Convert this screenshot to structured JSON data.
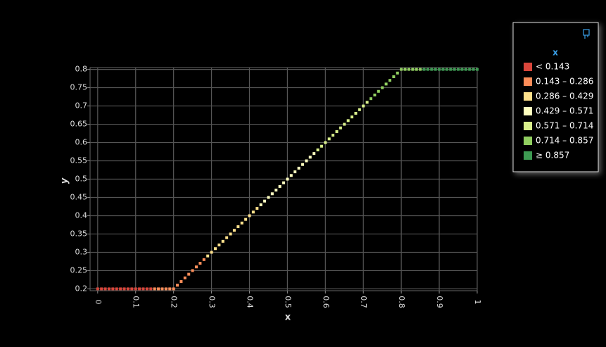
{
  "chart_data": {
    "type": "scatter",
    "x_label": "x",
    "y_label": "y",
    "xlim": [
      -0.02,
      1.0
    ],
    "ylim": [
      0.195,
      0.805
    ],
    "xticks": [
      0,
      0.1,
      0.2,
      0.3,
      0.4,
      0.5,
      0.6,
      0.7,
      0.8,
      0.9,
      1
    ],
    "yticks": [
      0.2,
      0.25,
      0.3,
      0.35,
      0.4,
      0.45,
      0.5,
      0.55,
      0.6,
      0.65,
      0.7,
      0.75,
      0.8
    ],
    "grid": true,
    "x": [
      0,
      0.01,
      0.02,
      0.03,
      0.04,
      0.05,
      0.06,
      0.07,
      0.08,
      0.09,
      0.1,
      0.11,
      0.12,
      0.13,
      0.14,
      0.15,
      0.16,
      0.17,
      0.18,
      0.19,
      0.2,
      0.21,
      0.22,
      0.23,
      0.24,
      0.25,
      0.26,
      0.27,
      0.28,
      0.29,
      0.3,
      0.31,
      0.32,
      0.33,
      0.34,
      0.35,
      0.36,
      0.37,
      0.38,
      0.39,
      0.4,
      0.41,
      0.42,
      0.43,
      0.44,
      0.45,
      0.46,
      0.47,
      0.48,
      0.49,
      0.5,
      0.51,
      0.52,
      0.53,
      0.54,
      0.55,
      0.56,
      0.57,
      0.58,
      0.59,
      0.6,
      0.61,
      0.62,
      0.63,
      0.64,
      0.65,
      0.66,
      0.67,
      0.68,
      0.69,
      0.7,
      0.71,
      0.72,
      0.73,
      0.74,
      0.75,
      0.76,
      0.77,
      0.78,
      0.79,
      0.8,
      0.81,
      0.82,
      0.83,
      0.84,
      0.85,
      0.86,
      0.87,
      0.88,
      0.89,
      0.9,
      0.91,
      0.92,
      0.93,
      0.94,
      0.95,
      0.96,
      0.97,
      0.98,
      0.99,
      1
    ],
    "values": [
      0.2,
      0.2,
      0.2,
      0.2,
      0.2,
      0.2,
      0.2,
      0.2,
      0.2,
      0.2,
      0.2,
      0.2,
      0.2,
      0.2,
      0.2,
      0.2,
      0.2,
      0.2,
      0.2,
      0.2,
      0.2,
      0.21,
      0.22,
      0.23,
      0.24,
      0.25,
      0.26,
      0.27,
      0.28,
      0.29,
      0.3,
      0.31,
      0.32,
      0.33,
      0.34,
      0.35,
      0.36,
      0.37,
      0.38,
      0.39,
      0.4,
      0.41,
      0.42,
      0.43,
      0.44,
      0.45,
      0.46,
      0.47,
      0.48,
      0.49,
      0.5,
      0.51,
      0.52,
      0.53,
      0.54,
      0.55,
      0.56,
      0.57,
      0.58,
      0.59,
      0.6,
      0.61,
      0.62,
      0.63,
      0.64,
      0.65,
      0.66,
      0.67,
      0.68,
      0.69,
      0.7,
      0.71,
      0.72,
      0.73,
      0.74,
      0.75,
      0.76,
      0.77,
      0.78,
      0.79,
      0.8,
      0.8,
      0.8,
      0.8,
      0.8,
      0.8,
      0.8,
      0.8,
      0.8,
      0.8,
      0.8,
      0.8,
      0.8,
      0.8,
      0.8,
      0.8,
      0.8,
      0.8,
      0.8,
      0.8,
      0.8
    ],
    "legend": {
      "title": "x",
      "position": "top-right",
      "thresholds": [
        0.143,
        0.286,
        0.429,
        0.571,
        0.714,
        0.857
      ],
      "items": [
        {
          "label": "< 0.143",
          "color": "#d9463b"
        },
        {
          "label": "0.143 – 0.286",
          "color": "#fc8d59"
        },
        {
          "label": "0.286 – 0.429",
          "color": "#fee08b"
        },
        {
          "label": "0.429 – 0.571",
          "color": "#ffffbf"
        },
        {
          "label": "0.571 – 0.714",
          "color": "#d9ef8b"
        },
        {
          "label": "0.714 – 0.857",
          "color": "#91cf60"
        },
        {
          "label": "≥ 0.857",
          "color": "#3d9a52"
        }
      ]
    }
  }
}
